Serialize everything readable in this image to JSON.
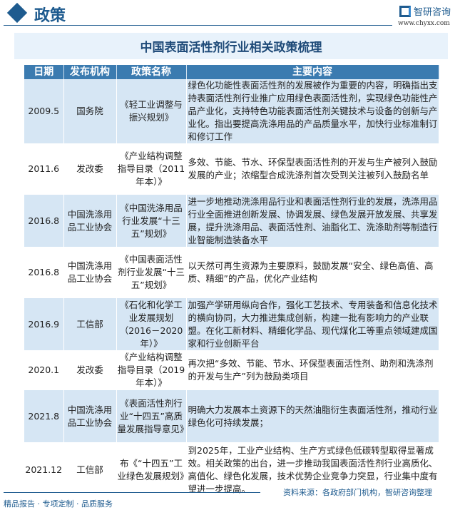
{
  "header": {
    "section": "政策",
    "brand": "智研咨询",
    "url": "www.chyxx.com"
  },
  "title": "中国表面活性剂行业相关政策梳理",
  "table": {
    "columns": [
      "日期",
      "发布机构",
      "政策名称",
      "主要内容"
    ],
    "rows": [
      {
        "date": "2009.5",
        "org": "国务院",
        "name": "《轻工业调整与振兴规划》",
        "content": "绿色化功能性表面活性剂的发展被作为重要的内容，明确指出支持表面活性剂行业推广应用绿色表面活性剂，实现绿色功能性产品产业化，支持特色功能表面活性剂关键技术与设备的创新与产业化。指出要提高洗涤用品的产品质量水平，加快行业标准制订和修订工作"
      },
      {
        "date": "2011.6",
        "org": "发改委",
        "name": "《产业结构调整指导目录（2011年本）》",
        "content": "多效、节能、节水、环保型表面活性剂的开发与生产被列入鼓励发展的产业；浓缩型合成洗涤剂首次受到关注被列入鼓励名单"
      },
      {
        "date": "2016.8",
        "org": "中国洗涤用品工业协会",
        "name": "《中国洗涤用品行业发展“十三五”规划》",
        "content": "进一步地推动洗涤用品行业和表面活性剂行业的发展，洗涤用品行业全面推进创新发展、协调发展、绿色发展开放发展、共享发展，提升洗涤用品、表面活性剂、油脂化工、洗涤助剂等制造行业智能制造装备水平"
      },
      {
        "date": "2016.8",
        "org": "中国洗涤用品工业协会",
        "name": "《中国表面活性剂行业发展“十三五”规划》",
        "content": "以天然可再生资源为主要原料，鼓励发展“安全、绿色高值、高质、精细”的产品，优化产业结构"
      },
      {
        "date": "2016.9",
        "org": "工信部",
        "name": "《石化和化学工业发展规划（2016－2020年）》",
        "content": "加强产学研用纵向合作，强化工艺技术、专用装备和信息化技术的横向协同，大力推进集成创新，构建一批有影响力的产业联盟。在化工新材料、精细化学品、现代煤化工等重点领域建成国家和行业创新平台"
      },
      {
        "date": "2020.1",
        "org": "发改委",
        "name": "《产业结构调整指导目录（2019年本）》",
        "content": "再次把“多效、节能、节水、环保型表面活性剂、助剂和洗涤剂的开发与生产”列为鼓励类项目"
      },
      {
        "date": "2021.8",
        "org": "中国洗涤用品工业协会",
        "name": "《表面活性剂行业“十四五”高质量发展指导意见》",
        "content": "明确大力发展本土资源下的天然油脂衍生表面活性剂，推动行业绿色化可持续发展；"
      },
      {
        "date": "2021.12",
        "org": "工信部",
        "name": "布《“十四五”工业绿色发展规划》",
        "content": "到2025年，工业产业结构、生产方式绿色低碳转型取得显著成效。相关政策的出台，进一步推动我国表面活性剂行业高质化、高值化、绿色化发展，技术优势企业竞争力突显，行业集中度有望进一步提高。"
      }
    ]
  },
  "footer": {
    "source": "资料来源：各政府部门机构，智研咨询整理",
    "slogan": "精品报告 · 专项定制 · 品质服务"
  }
}
